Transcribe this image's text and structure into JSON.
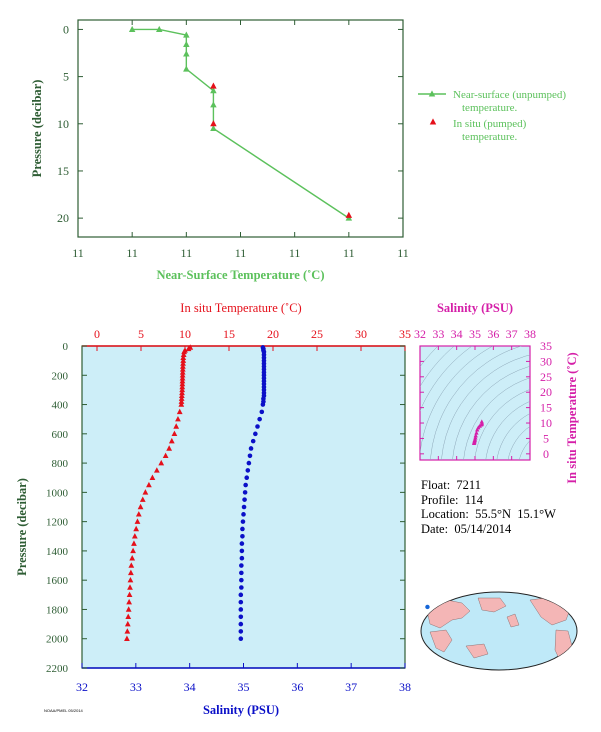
{
  "colors": {
    "green_dark": "#2e5d34",
    "green_line": "#5cc15c",
    "red": "#e5101b",
    "blue": "#0b10c8",
    "magenta": "#d51fa8",
    "panel_bg": "#cdeef8"
  },
  "float_info": {
    "float": "Float:  7211",
    "profile": "Profile:  114",
    "location": "Location:  55.5°N  15.1°W",
    "date": "Date:  05/14/2014"
  },
  "footer_text": "NOAA/PMEL 05/2014",
  "chart_data": [
    {
      "id": "near-surface",
      "type": "line",
      "xlabel": "Near-Surface Temperature (˚C)",
      "ylabel": "Pressure (decibar)",
      "xtick_labels": [
        "11",
        "11",
        "11",
        "11",
        "11",
        "11",
        "11"
      ],
      "ytick_labels": [
        "0",
        "5",
        "10",
        "15",
        "20"
      ],
      "xlim": [
        10.77,
        10.83
      ],
      "ylim": [
        22,
        -1
      ],
      "yticks": [
        0,
        5,
        10,
        15,
        20
      ],
      "legend_position": "right",
      "series": [
        {
          "name": "Near-surface (unpumped) temperature.",
          "marker": "triangle",
          "style": "line",
          "x": [
            10.78,
            10.785,
            10.79,
            10.79,
            10.79,
            10.79,
            10.795,
            10.795,
            10.795,
            10.82
          ],
          "y": [
            0,
            0,
            0.6,
            1.6,
            2.6,
            4.2,
            6.5,
            8.0,
            10.5,
            20.0
          ]
        },
        {
          "name": "In situ (pumped) temperature.",
          "marker": "triangle",
          "style": "points",
          "x": [
            10.795,
            10.795,
            10.82
          ],
          "y": [
            6.0,
            10.0,
            19.7
          ]
        }
      ]
    },
    {
      "id": "profile",
      "type": "scatter",
      "x_top_label": "In situ Temperature (˚C)",
      "x_bottom_label": "Salinity (PSU)",
      "ylabel": "Pressure (decibar)",
      "temp_ticks": [
        0,
        5,
        10,
        15,
        20,
        25,
        30,
        35
      ],
      "sal_ticks": [
        32,
        33,
        34,
        35,
        36,
        37,
        38
      ],
      "ytick_labels": [
        "0",
        "200",
        "400",
        "600",
        "800",
        "1000",
        "1200",
        "1400",
        "1600",
        "1800",
        "2000",
        "2200"
      ],
      "pressure_ticks": [
        0,
        200,
        400,
        600,
        800,
        1000,
        1200,
        1400,
        1600,
        1800,
        2000,
        2200
      ],
      "temp_lim": [
        0,
        35
      ],
      "sal_lim": [
        32,
        38
      ],
      "pressure_lim": [
        2200,
        0
      ],
      "temperature": {
        "pressure": [
          10,
          20,
          30,
          40,
          60,
          80,
          100,
          120,
          140,
          160,
          180,
          200,
          220,
          240,
          260,
          280,
          300,
          320,
          340,
          360,
          380,
          400,
          450,
          500,
          550,
          600,
          650,
          700,
          750,
          800,
          850,
          900,
          950,
          1000,
          1050,
          1100,
          1150,
          1200,
          1250,
          1300,
          1350,
          1400,
          1450,
          1500,
          1550,
          1600,
          1650,
          1700,
          1750,
          1800,
          1850,
          1900,
          1950,
          2000
        ],
        "values": [
          10.6,
          10.4,
          10.0,
          9.9,
          9.85,
          9.8,
          9.8,
          9.78,
          9.76,
          9.75,
          9.74,
          9.73,
          9.72,
          9.71,
          9.7,
          9.69,
          9.68,
          9.66,
          9.64,
          9.62,
          9.6,
          9.58,
          9.4,
          9.2,
          9.0,
          8.8,
          8.5,
          8.2,
          7.8,
          7.3,
          6.8,
          6.3,
          5.9,
          5.5,
          5.2,
          4.95,
          4.75,
          4.6,
          4.45,
          4.3,
          4.2,
          4.1,
          4.0,
          3.9,
          3.85,
          3.8,
          3.75,
          3.7,
          3.65,
          3.6,
          3.55,
          3.5,
          3.45,
          3.4
        ]
      },
      "salinity": {
        "pressure": [
          10,
          20,
          30,
          40,
          60,
          80,
          100,
          120,
          140,
          160,
          180,
          200,
          220,
          240,
          260,
          280,
          300,
          320,
          340,
          360,
          380,
          400,
          450,
          500,
          550,
          600,
          650,
          700,
          750,
          800,
          850,
          900,
          950,
          1000,
          1050,
          1100,
          1150,
          1200,
          1250,
          1300,
          1350,
          1400,
          1450,
          1500,
          1550,
          1600,
          1650,
          1700,
          1750,
          1800,
          1850,
          1900,
          1950,
          2000
        ],
        "values": [
          35.36,
          35.37,
          35.37,
          35.38,
          35.38,
          35.38,
          35.38,
          35.38,
          35.38,
          35.38,
          35.38,
          35.38,
          35.38,
          35.38,
          35.38,
          35.38,
          35.38,
          35.38,
          35.38,
          35.37,
          35.37,
          35.36,
          35.34,
          35.3,
          35.26,
          35.22,
          35.18,
          35.14,
          35.12,
          35.1,
          35.08,
          35.06,
          35.04,
          35.03,
          35.02,
          35.01,
          35.0,
          34.99,
          34.98,
          34.98,
          34.97,
          34.97,
          34.97,
          34.96,
          34.96,
          34.96,
          34.96,
          34.95,
          34.95,
          34.95,
          34.95,
          34.95,
          34.95,
          34.95
        ]
      }
    },
    {
      "id": "ts-diagram",
      "type": "scatter",
      "x_top_label": "Salinity (PSU)",
      "ylabel_right": "In situ Temperature (˚C)",
      "sal_ticks": [
        32,
        33,
        34,
        35,
        36,
        37,
        38
      ],
      "temp_ticks": [
        0,
        5,
        10,
        15,
        20,
        25,
        30,
        35
      ],
      "sal_lim": [
        32,
        38
      ],
      "temp_lim": [
        -2,
        35
      ],
      "points": {
        "salinity": [
          34.95,
          34.96,
          34.97,
          34.98,
          35.0,
          35.02,
          35.04,
          35.08,
          35.12,
          35.18,
          35.26,
          35.34,
          35.38,
          35.38,
          35.37
        ],
        "temperature": [
          3.4,
          3.7,
          4.0,
          4.3,
          4.6,
          5.2,
          5.9,
          6.8,
          7.8,
          8.5,
          9.0,
          9.4,
          9.7,
          9.8,
          10.4
        ]
      }
    },
    {
      "id": "location-map",
      "type": "map",
      "marker": {
        "lat": 55.5,
        "lon": -15.1
      }
    }
  ]
}
